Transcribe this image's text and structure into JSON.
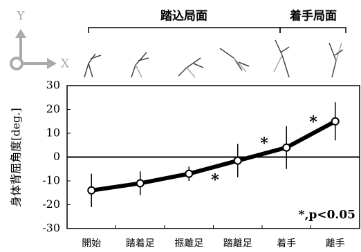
{
  "chart_data": {
    "type": "line",
    "y_label": "身体背屈角度[deg.]",
    "phases": [
      "踏込局面",
      "着手局面"
    ],
    "axis_icon": {
      "y": "Y",
      "x": "X"
    },
    "categories": [
      "開始",
      "踏着足",
      "振離足",
      "踏離足",
      "着手",
      "離手"
    ],
    "values": [
      -14,
      -11,
      -7,
      -1.5,
      4,
      15
    ],
    "errors": [
      7,
      5,
      3,
      7,
      9,
      8
    ],
    "color": "#000000",
    "significance_markers": [
      "*",
      "*",
      "*"
    ],
    "note": "*,p<0.05",
    "ylim": [
      -30,
      30
    ],
    "yticks": [
      -30,
      -20,
      -10,
      0,
      10,
      20,
      30
    ],
    "grid": false
  }
}
